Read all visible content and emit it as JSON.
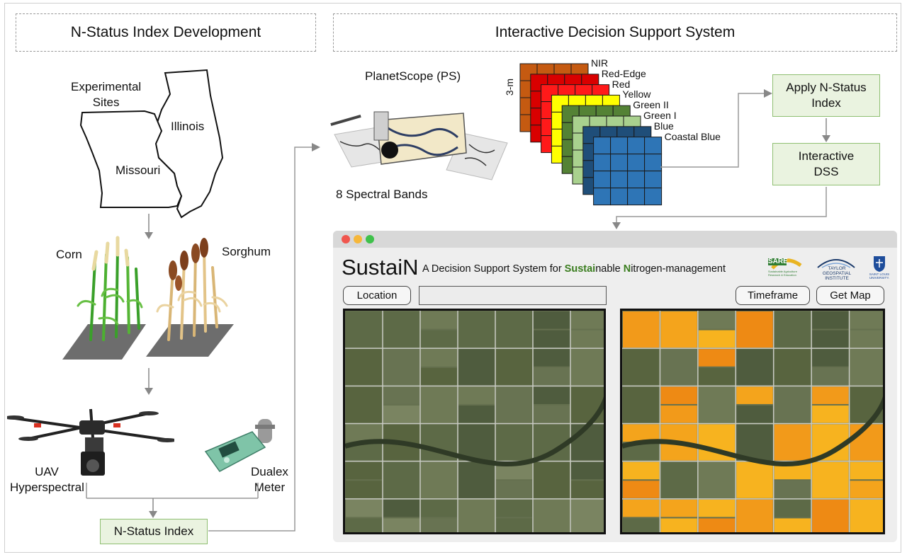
{
  "left_section": {
    "title": "N-Status Index Development",
    "map_labels": {
      "sites": "Experimental\nSites",
      "illinois": "Illinois",
      "missouri": "Missouri"
    },
    "crops": {
      "corn": "Corn",
      "sorghum": "Sorghum"
    },
    "sensors": {
      "uav": "UAV\nHyperspectral",
      "dualex": "Dualex\nMeter"
    },
    "index_box": "N-Status Index"
  },
  "right_section": {
    "title": "Interactive Decision Support System",
    "satellite": {
      "name": "PlanetScope (PS)",
      "bands_caption": "8 Spectral Bands"
    },
    "resolution": "3-m",
    "bands": [
      {
        "name": "NIR",
        "color": "#c55a11"
      },
      {
        "name": "Red-Edge",
        "color": "#d90000"
      },
      {
        "name": "Red",
        "color": "#ff1a1a"
      },
      {
        "name": "Yellow",
        "color": "#ffff00"
      },
      {
        "name": "Green II",
        "color": "#548235"
      },
      {
        "name": "Green I",
        "color": "#a9d18e"
      },
      {
        "name": "Blue",
        "color": "#1f4e79"
      },
      {
        "name": "Coastal Blue",
        "color": "#2e75b6"
      }
    ],
    "flow_boxes": {
      "apply": "Apply N-Status\nIndex",
      "dss": "Interactive\nDSS"
    }
  },
  "app": {
    "name": "SustaiN",
    "tagline_parts": [
      "A Decision Support System for ",
      "Sustai",
      "nable ",
      "N",
      "itrogen-management"
    ],
    "accent": "#3a7d1e",
    "buttons": {
      "location": "Location",
      "timeframe": "Timeframe",
      "get_map": "Get Map"
    },
    "location_value": "",
    "logos": {
      "sare": "SARE",
      "sare_sub": "Sustainable Agriculture\nResearch & Education",
      "taylor": "TAYLOR\nGEOSPATIAL\nINSTITUTE",
      "slu": "SAINT LOUIS\nUNIVERSITY."
    }
  }
}
